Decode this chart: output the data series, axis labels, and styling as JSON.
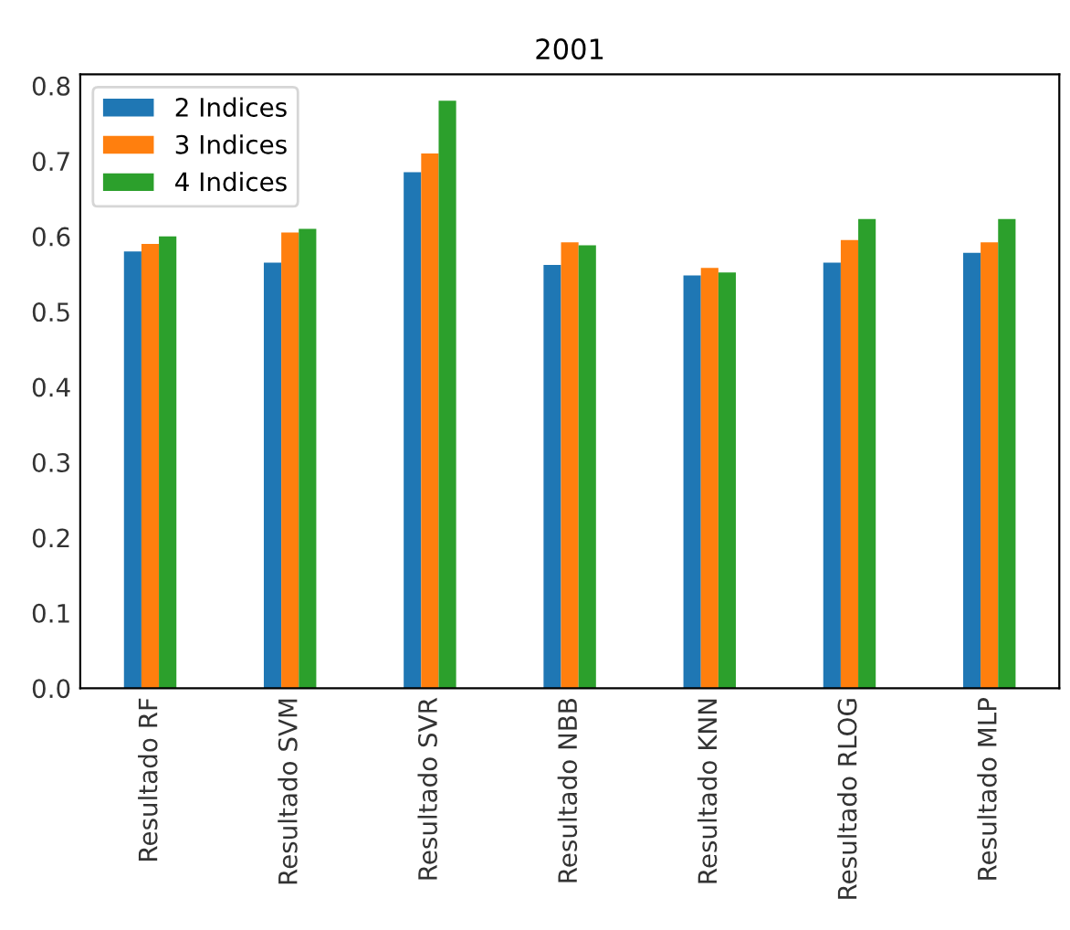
{
  "chart_data": {
    "type": "bar",
    "title": "2001",
    "categories": [
      "Resultado RF",
      "Resultado SVM",
      "Resultado SVR",
      "Resultado NBB",
      "Resultado KNN",
      "Resultado RLOG",
      "Resultado MLP"
    ],
    "series": [
      {
        "name": "2 Indices",
        "color": "#1f77b4",
        "values": [
          0.58,
          0.565,
          0.685,
          0.562,
          0.548,
          0.565,
          0.578
        ]
      },
      {
        "name": "3 Indices",
        "color": "#ff7f0e",
        "values": [
          0.59,
          0.605,
          0.71,
          0.592,
          0.558,
          0.595,
          0.592
        ]
      },
      {
        "name": "4 Indices",
        "color": "#2ca02c",
        "values": [
          0.6,
          0.61,
          0.78,
          0.588,
          0.552,
          0.623,
          0.623
        ]
      }
    ],
    "ylim": [
      0,
      0.815
    ],
    "yticks": [
      {
        "value": 0,
        "label": "0.0"
      },
      0.1,
      0.2,
      0.3,
      0.4,
      0.5,
      0.6,
      0.7,
      0.8
    ],
    "grid": false,
    "legend": "top left"
  }
}
